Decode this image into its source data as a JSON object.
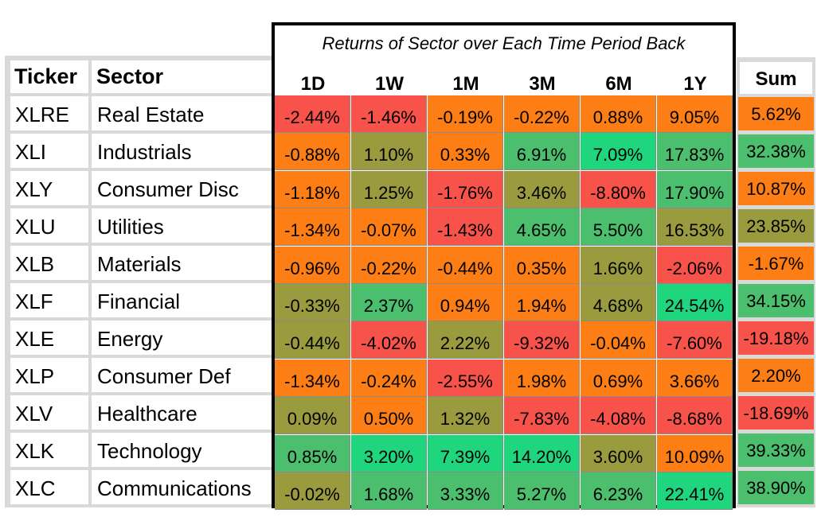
{
  "chart_data": {
    "type": "table",
    "title": "Returns of Sector over Each Time Period Back",
    "columns": [
      "Ticker",
      "Sector",
      "1D",
      "1W",
      "1M",
      "3M",
      "6M",
      "1Y",
      "Sum"
    ],
    "periods": [
      "1D",
      "1W",
      "1M",
      "3M",
      "6M",
      "1Y"
    ],
    "sum_label": "Sum",
    "rows": [
      {
        "ticker": "XLRE",
        "sector": "Real Estate",
        "values": [
          "-2.44%",
          "-1.46%",
          "-0.19%",
          "-0.22%",
          "0.88%",
          "9.05%"
        ],
        "sum": "5.62%"
      },
      {
        "ticker": "XLI",
        "sector": "Industrials",
        "values": [
          "-0.88%",
          "1.10%",
          "0.33%",
          "6.91%",
          "7.09%",
          "17.83%"
        ],
        "sum": "32.38%"
      },
      {
        "ticker": "XLY",
        "sector": "Consumer Disc",
        "values": [
          "-1.18%",
          "1.25%",
          "-1.76%",
          "3.46%",
          "-8.80%",
          "17.90%"
        ],
        "sum": "10.87%"
      },
      {
        "ticker": "XLU",
        "sector": "Utilities",
        "values": [
          "-1.34%",
          "-0.07%",
          "-1.43%",
          "4.65%",
          "5.50%",
          "16.53%"
        ],
        "sum": "23.85%"
      },
      {
        "ticker": "XLB",
        "sector": "Materials",
        "values": [
          "-0.96%",
          "-0.22%",
          "-0.44%",
          "0.35%",
          "1.66%",
          "-2.06%"
        ],
        "sum": "-1.67%"
      },
      {
        "ticker": "XLF",
        "sector": "Financial",
        "values": [
          "-0.33%",
          "2.37%",
          "0.94%",
          "1.94%",
          "4.68%",
          "24.54%"
        ],
        "sum": "34.15%"
      },
      {
        "ticker": "XLE",
        "sector": "Energy",
        "values": [
          "-0.44%",
          "-4.02%",
          "2.22%",
          "-9.32%",
          "-0.04%",
          "-7.60%"
        ],
        "sum": "-19.18%"
      },
      {
        "ticker": "XLP",
        "sector": "Consumer Def",
        "values": [
          "-1.34%",
          "-0.24%",
          "-2.55%",
          "1.98%",
          "0.69%",
          "3.66%"
        ],
        "sum": "2.20%"
      },
      {
        "ticker": "XLV",
        "sector": "Healthcare",
        "values": [
          "0.09%",
          "0.50%",
          "1.32%",
          "-7.83%",
          "-4.08%",
          "-8.68%"
        ],
        "sum": "-18.69%"
      },
      {
        "ticker": "XLK",
        "sector": "Technology",
        "values": [
          "0.85%",
          "3.20%",
          "7.39%",
          "14.20%",
          "3.60%",
          "10.09%"
        ],
        "sum": "39.33%"
      },
      {
        "ticker": "XLC",
        "sector": "Communications",
        "values": [
          "-0.02%",
          "1.68%",
          "3.33%",
          "5.27%",
          "6.23%",
          "22.41%"
        ],
        "sum": "38.90%"
      }
    ],
    "colors": {
      "red": "#f8534b",
      "orange": "#fd7e14",
      "olive": "#9a9a3e",
      "green": "#4cbf6e",
      "bright_green": "#1fd67e"
    }
  }
}
